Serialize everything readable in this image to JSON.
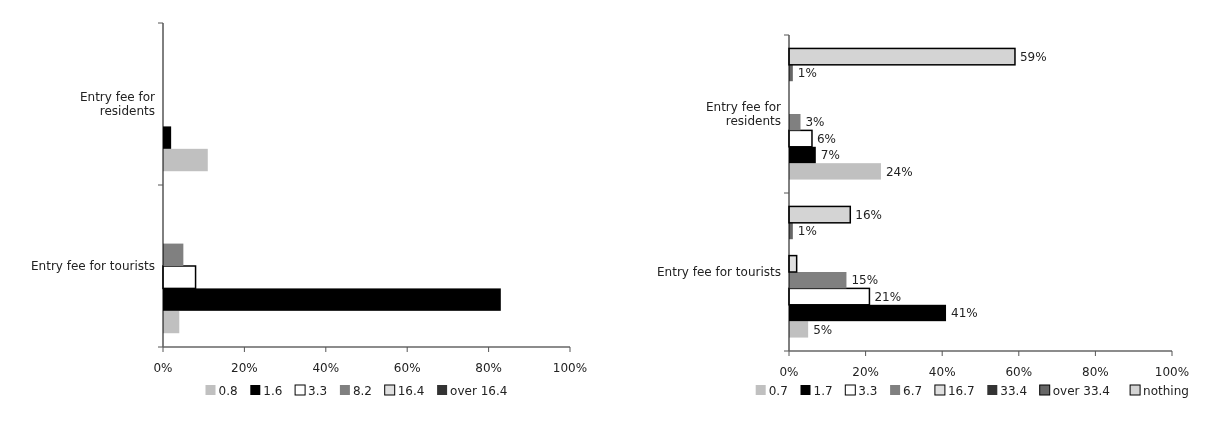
{
  "chart_data": [
    {
      "type": "bar",
      "orientation": "horizontal",
      "categories": [
        "Entry fee for residents",
        "Entry fee for tourists"
      ],
      "xlim": [
        0,
        100
      ],
      "xticks": [
        {
          "value": 0,
          "label": "0%"
        },
        {
          "value": 20,
          "label": "20%"
        },
        {
          "value": 40,
          "label": "40%"
        },
        {
          "value": 60,
          "label": "60%"
        },
        {
          "value": 80,
          "label": "80%"
        },
        {
          "value": 100,
          "label": "100%"
        }
      ],
      "legend": "bottom",
      "grid": false,
      "series": [
        {
          "name": "0.8",
          "color": "#c0c0c0",
          "values": [
            11,
            4
          ]
        },
        {
          "name": "1.6",
          "color": "#000000",
          "values": [
            2,
            83
          ]
        },
        {
          "name": "3.3",
          "color": "#ffffff",
          "values": [
            0,
            8
          ]
        },
        {
          "name": "8.2",
          "color": "#808080",
          "values": [
            0,
            5
          ]
        },
        {
          "name": "16.4",
          "color": "#e0e0e0",
          "values": [
            0,
            0
          ]
        },
        {
          "name": "over 16.4",
          "color": "#333333",
          "values": [
            0,
            0
          ]
        }
      ]
    },
    {
      "type": "bar",
      "orientation": "horizontal",
      "categories": [
        "Entry fee for residents",
        "Entry fee for tourists"
      ],
      "xlim": [
        0,
        100
      ],
      "xticks": [
        {
          "value": 0,
          "label": "0%"
        },
        {
          "value": 20,
          "label": "20%"
        },
        {
          "value": 40,
          "label": "40%"
        },
        {
          "value": 60,
          "label": "60%"
        },
        {
          "value": 80,
          "label": "80%"
        },
        {
          "value": 100,
          "label": "100%"
        }
      ],
      "legend": "bottom",
      "grid": false,
      "series": [
        {
          "name": "0.7",
          "color": "#c0c0c0",
          "values": [
            24,
            5
          ],
          "value_labels": [
            "24%",
            "5%"
          ]
        },
        {
          "name": "1.7",
          "color": "#000000",
          "values": [
            7,
            41
          ],
          "value_labels": [
            "7%",
            "41%"
          ]
        },
        {
          "name": "3.3",
          "color": "#ffffff",
          "values": [
            6,
            21
          ],
          "value_labels": [
            "6%",
            "21%"
          ]
        },
        {
          "name": "6.7",
          "color": "#808080",
          "values": [
            3,
            15
          ],
          "value_labels": [
            "3%",
            "15%"
          ]
        },
        {
          "name": "16.7",
          "color": "#e0e0e0",
          "values": [
            0,
            2
          ],
          "value_labels": [
            null,
            null
          ]
        },
        {
          "name": "33.4",
          "color": "#333333",
          "values": [
            0,
            0
          ],
          "value_labels": [
            null,
            null
          ]
        },
        {
          "name": "over 33.4",
          "color": "#666666",
          "values": [
            1,
            1
          ],
          "value_labels": [
            "1%",
            "1%"
          ]
        },
        {
          "name": "nothing",
          "color": "#d4d4d4",
          "values": [
            59,
            16
          ],
          "value_labels": [
            "59%",
            "16%"
          ]
        }
      ]
    }
  ]
}
